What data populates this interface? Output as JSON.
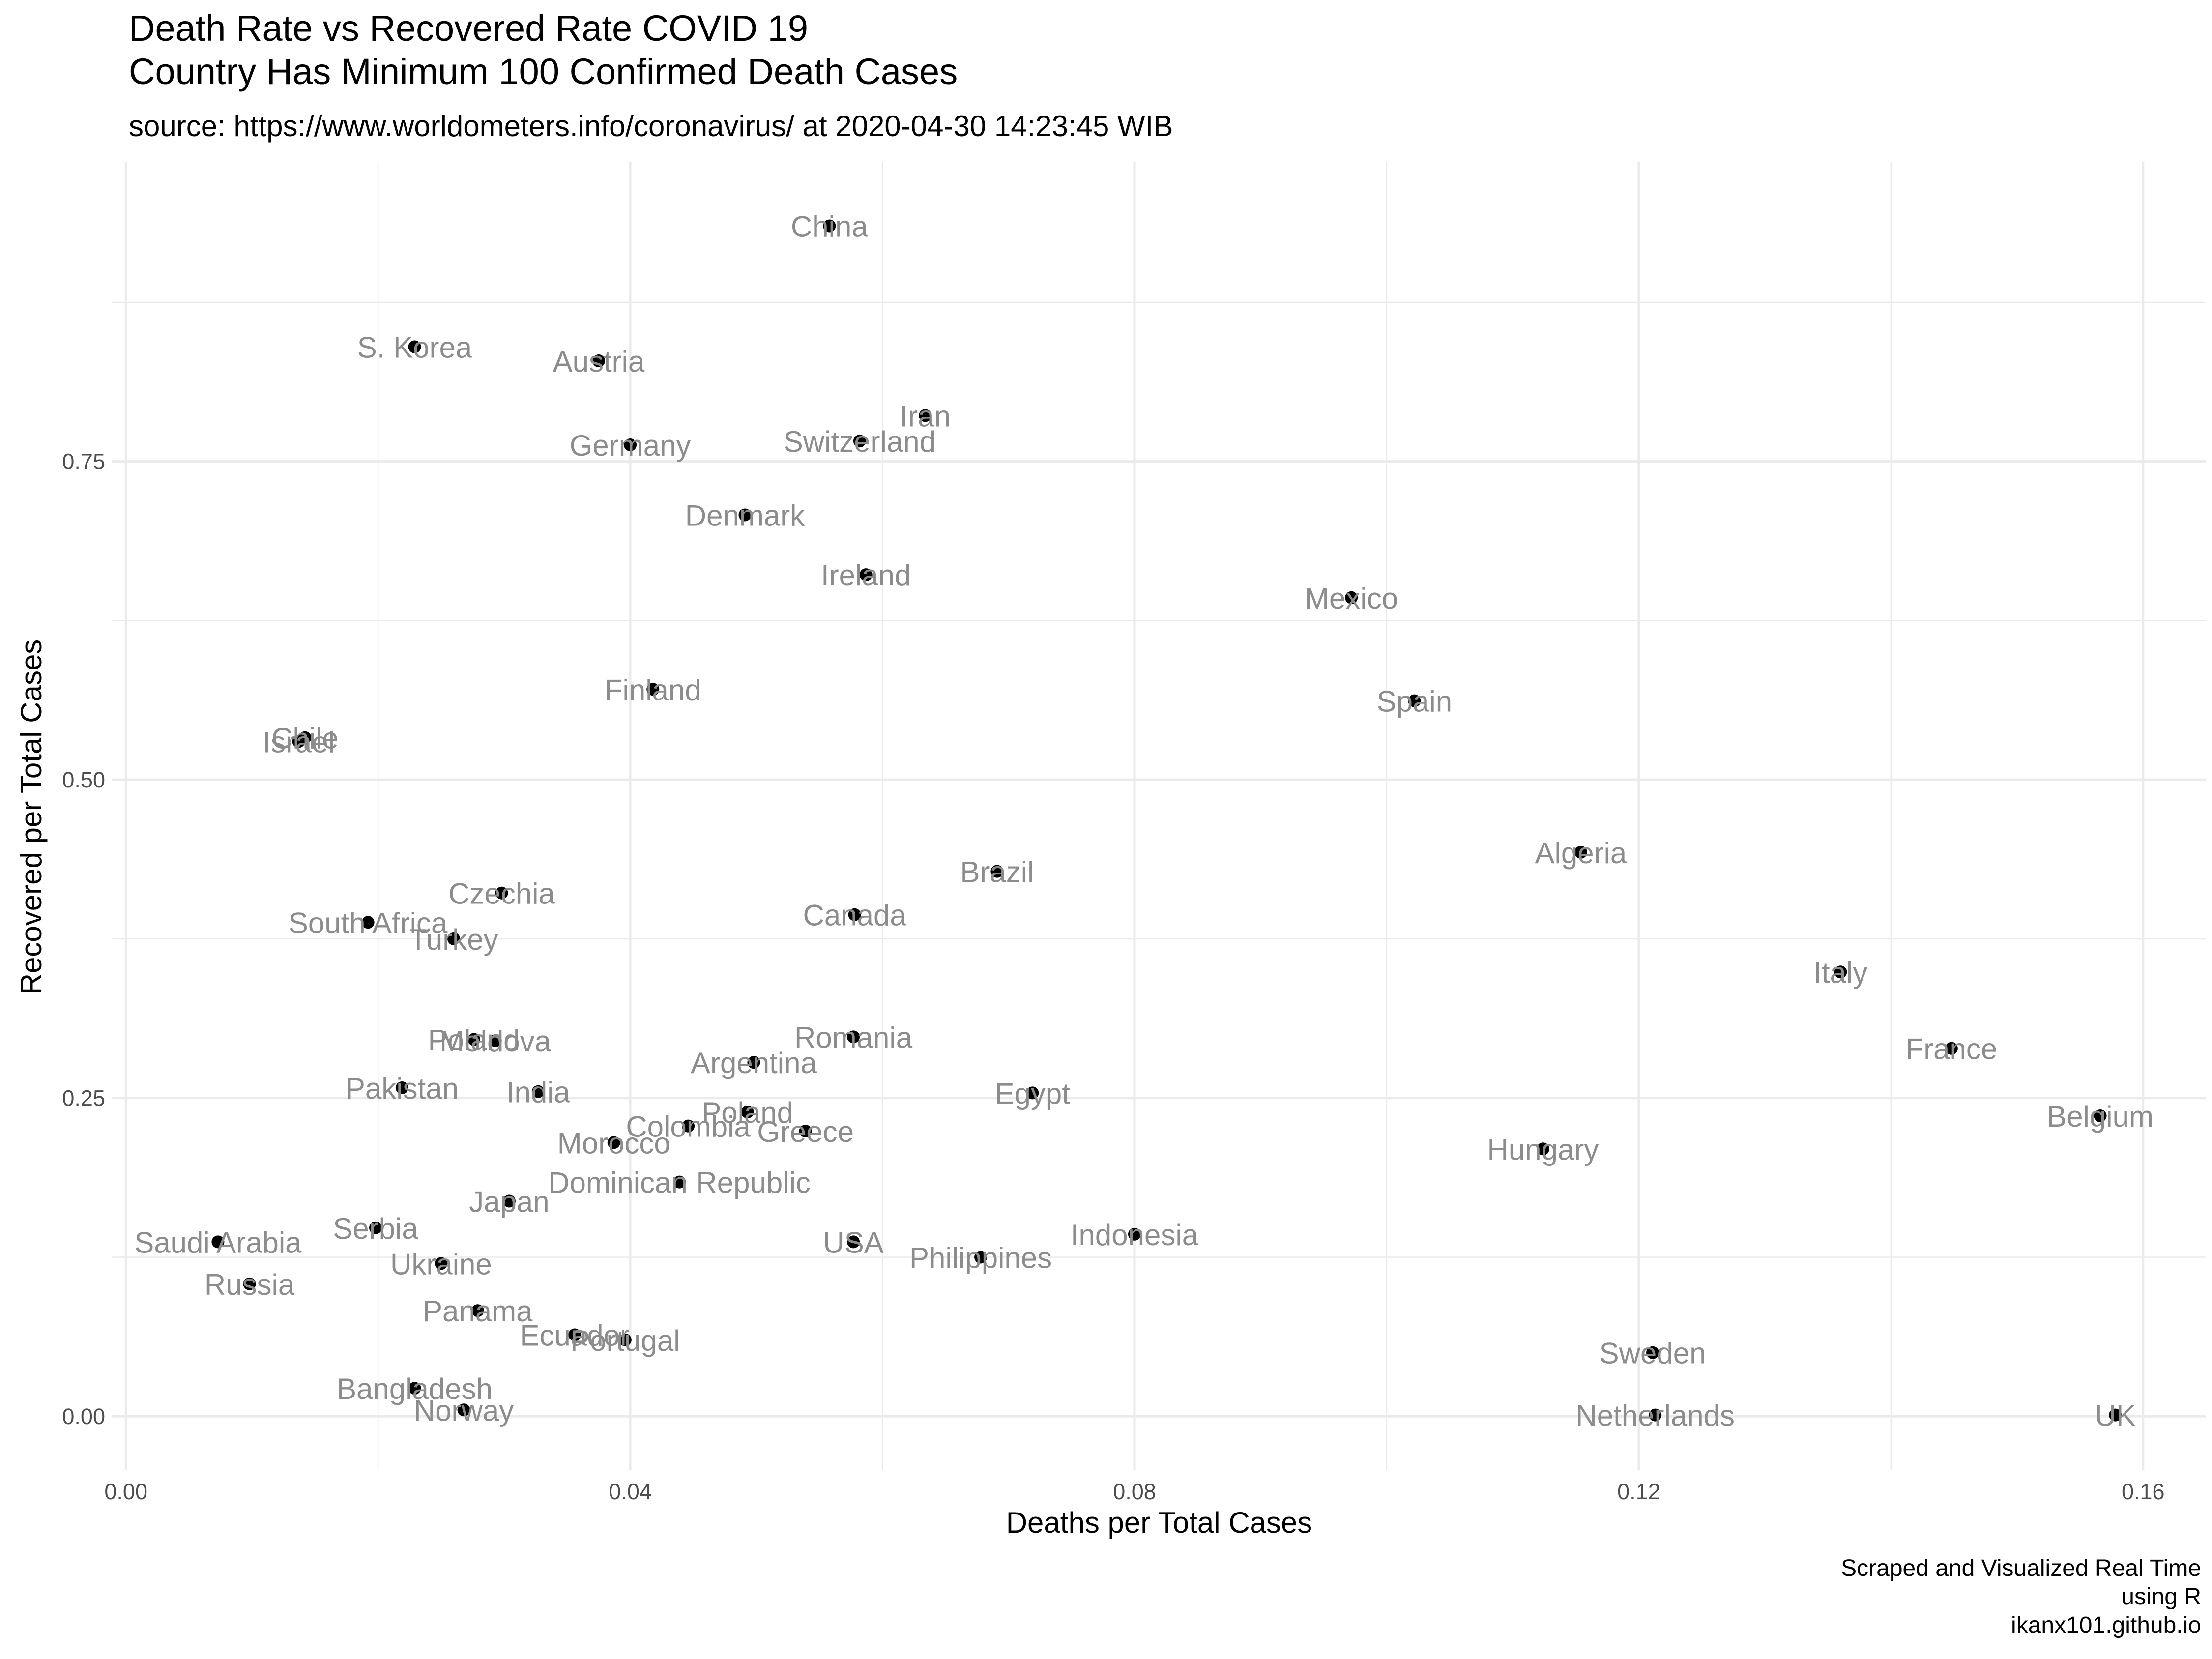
{
  "chart_data": {
    "type": "scatter",
    "title": [
      "Death Rate vs Recovered Rate COVID 19",
      "Country Has Minimum 100 Confirmed Death Cases"
    ],
    "subtitle": "source: https://www.worldometers.info/coronavirus/ at 2020-04-30 14:23:45 WIB",
    "caption": [
      "Scraped and Visualized Real Time",
      "using R",
      "ikanx101.github.io"
    ],
    "xlabel": "Deaths per Total Cases",
    "ylabel": "Recovered per Total Cases",
    "xlim": [
      -0.0011,
      0.165
    ],
    "ylim": [
      -0.042,
      0.985
    ],
    "x_ticks": [
      0.0,
      0.04,
      0.08,
      0.12,
      0.16
    ],
    "x_tick_labels": [
      "0.00",
      "0.04",
      "0.08",
      "0.12",
      "0.16"
    ],
    "y_ticks": [
      0.0,
      0.25,
      0.5,
      0.75
    ],
    "y_tick_labels": [
      "0.00",
      "0.25",
      "0.50",
      "0.75"
    ],
    "grid": true,
    "point_color": "#000000",
    "label_color": "#8c8c8c",
    "grid_color": "#ebebeb",
    "points": [
      {
        "label": "China",
        "x": 0.0558,
        "y": 0.935
      },
      {
        "label": "S. Korea",
        "x": 0.0229,
        "y": 0.84
      },
      {
        "label": "Austria",
        "x": 0.0375,
        "y": 0.829
      },
      {
        "label": "Iran",
        "x": 0.0634,
        "y": 0.786
      },
      {
        "label": "Germany",
        "x": 0.04,
        "y": 0.763
      },
      {
        "label": "Switzerland",
        "x": 0.0582,
        "y": 0.766
      },
      {
        "label": "Denmark",
        "x": 0.0491,
        "y": 0.708
      },
      {
        "label": "Ireland",
        "x": 0.0587,
        "y": 0.661
      },
      {
        "label": "Mexico",
        "x": 0.0972,
        "y": 0.643
      },
      {
        "label": "Finland",
        "x": 0.0418,
        "y": 0.571
      },
      {
        "label": "Spain",
        "x": 0.1022,
        "y": 0.562
      },
      {
        "label": "Chile",
        "x": 0.0142,
        "y": 0.533
      },
      {
        "label": "Israel",
        "x": 0.0137,
        "y": 0.53
      },
      {
        "label": "Algeria",
        "x": 0.1154,
        "y": 0.443
      },
      {
        "label": "Brazil",
        "x": 0.0691,
        "y": 0.428
      },
      {
        "label": "Czechia",
        "x": 0.0298,
        "y": 0.411
      },
      {
        "label": "Canada",
        "x": 0.0578,
        "y": 0.394
      },
      {
        "label": "South Africa",
        "x": 0.0192,
        "y": 0.388
      },
      {
        "label": "Turkey",
        "x": 0.026,
        "y": 0.375
      },
      {
        "label": "Italy",
        "x": 0.136,
        "y": 0.349
      },
      {
        "label": "Romania",
        "x": 0.0577,
        "y": 0.298
      },
      {
        "label": "Moldova",
        "x": 0.0293,
        "y": 0.295
      },
      {
        "label": "Poland",
        "x": 0.0276,
        "y": 0.296
      },
      {
        "label": "France",
        "x": 0.1448,
        "y": 0.289
      },
      {
        "label": "Argentina",
        "x": 0.0498,
        "y": 0.278
      },
      {
        "label": "Pakistan",
        "x": 0.0219,
        "y": 0.258
      },
      {
        "label": "India",
        "x": 0.0327,
        "y": 0.255
      },
      {
        "label": "Egypt",
        "x": 0.0719,
        "y": 0.254
      },
      {
        "label": "Belgium",
        "x": 0.1566,
        "y": 0.236
      },
      {
        "label": "Poland",
        "x": 0.0493,
        "y": 0.239
      },
      {
        "label": "Colombia",
        "x": 0.0446,
        "y": 0.228
      },
      {
        "label": "Greece",
        "x": 0.0539,
        "y": 0.224
      },
      {
        "label": "Morocco",
        "x": 0.0387,
        "y": 0.215
      },
      {
        "label": "Hungary",
        "x": 0.1124,
        "y": 0.21
      },
      {
        "label": "Dominican Republic",
        "x": 0.0439,
        "y": 0.184
      },
      {
        "label": "Japan",
        "x": 0.0304,
        "y": 0.169
      },
      {
        "label": "Serbia",
        "x": 0.0198,
        "y": 0.148
      },
      {
        "label": "Saudi Arabia",
        "x": 0.0073,
        "y": 0.137
      },
      {
        "label": "USA",
        "x": 0.0577,
        "y": 0.137
      },
      {
        "label": "Indonesia",
        "x": 0.08,
        "y": 0.143
      },
      {
        "label": "Philippines",
        "x": 0.0678,
        "y": 0.125
      },
      {
        "label": "Ukraine",
        "x": 0.025,
        "y": 0.12
      },
      {
        "label": "Russia",
        "x": 0.0098,
        "y": 0.104
      },
      {
        "label": "Panama",
        "x": 0.0279,
        "y": 0.083
      },
      {
        "label": "Ecuador",
        "x": 0.0356,
        "y": 0.064
      },
      {
        "label": "Portugal",
        "x": 0.0396,
        "y": 0.06
      },
      {
        "label": "Sweden",
        "x": 0.1211,
        "y": 0.05
      },
      {
        "label": "Bangladesh",
        "x": 0.0229,
        "y": 0.022
      },
      {
        "label": "Norway",
        "x": 0.0268,
        "y": 0.005
      },
      {
        "label": "Netherlands",
        "x": 0.1213,
        "y": 0.001
      },
      {
        "label": "UK",
        "x": 0.1578,
        "y": 0.001
      }
    ]
  }
}
